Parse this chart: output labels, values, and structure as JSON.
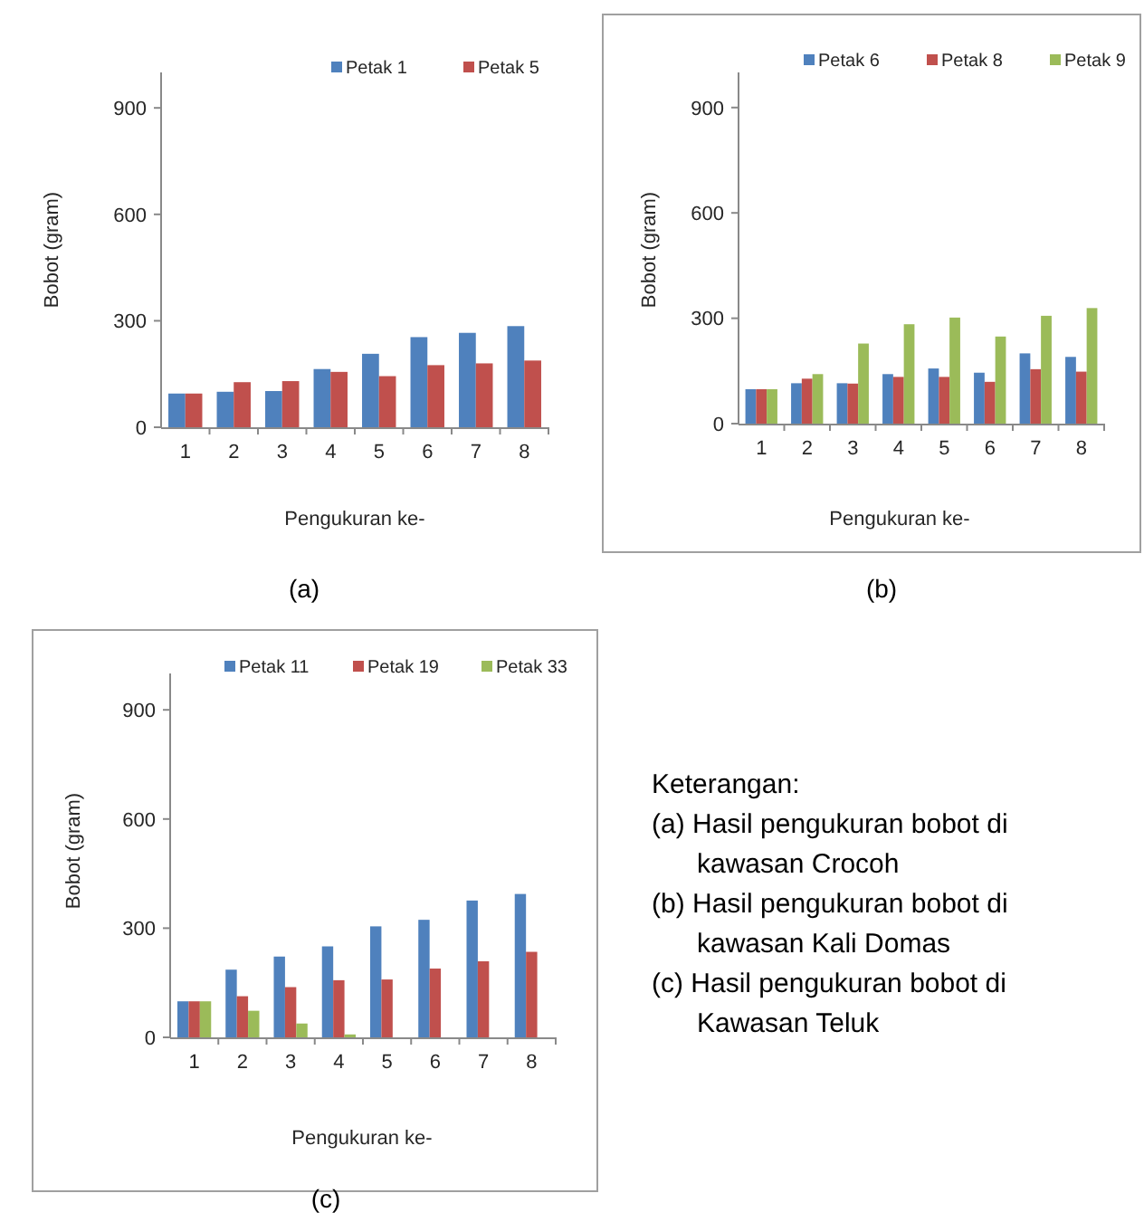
{
  "chart_data": [
    {
      "type": "bar",
      "title": "(a)",
      "xlabel": "Pengukuran ke-",
      "ylabel": "Bobot (gram)",
      "categories": [
        "1",
        "2",
        "3",
        "4",
        "5",
        "6",
        "7",
        "8"
      ],
      "ylim": [
        0,
        1000
      ],
      "yticks": [
        0,
        300,
        600,
        900
      ],
      "legend": "top right",
      "series": [
        {
          "name": "Petak 1",
          "color": "#4f81bd",
          "values": [
            95,
            100,
            102,
            164,
            207,
            254,
            266,
            285
          ]
        },
        {
          "name": "Petak 5",
          "color": "#c0504d",
          "values": [
            95,
            127,
            130,
            156,
            144,
            175,
            180,
            188
          ]
        }
      ]
    },
    {
      "type": "bar",
      "title": "(b)",
      "xlabel": "Pengukuran ke-",
      "ylabel": "Bobot (gram)",
      "categories": [
        "1",
        "2",
        "3",
        "4",
        "5",
        "6",
        "7",
        "8"
      ],
      "ylim": [
        0,
        1000
      ],
      "yticks": [
        0,
        300,
        600,
        900
      ],
      "legend": "top right",
      "series": [
        {
          "name": "Petak 6",
          "color": "#4f81bd",
          "values": [
            98,
            115,
            115,
            141,
            157,
            145,
            200,
            190
          ]
        },
        {
          "name": "Petak 8",
          "color": "#c0504d",
          "values": [
            98,
            128,
            114,
            133,
            133,
            119,
            155,
            148
          ]
        },
        {
          "name": "Petak 9",
          "color": "#9bbb59",
          "values": [
            98,
            141,
            228,
            283,
            302,
            248,
            307,
            329
          ]
        }
      ]
    },
    {
      "type": "bar",
      "title": "(c)",
      "xlabel": "Pengukuran ke-",
      "ylabel": "Bobot (gram)",
      "categories": [
        "1",
        "2",
        "3",
        "4",
        "5",
        "6",
        "7",
        "8"
      ],
      "ylim": [
        0,
        1000
      ],
      "yticks": [
        0,
        300,
        600,
        900
      ],
      "legend": "top right",
      "series": [
        {
          "name": "Petak 11",
          "color": "#4f81bd",
          "values": [
            99,
            186,
            222,
            250,
            305,
            323,
            376,
            394
          ]
        },
        {
          "name": "Petak 19",
          "color": "#c0504d",
          "values": [
            99,
            113,
            138,
            157,
            159,
            189,
            209,
            235
          ]
        },
        {
          "name": "Petak 33",
          "color": "#9bbb59",
          "values": [
            99,
            73,
            38,
            8,
            null,
            null,
            null,
            null
          ]
        }
      ]
    },
    {
      "type": "other",
      "annotations": [
        "Keterangan:",
        "(a) Hasil pengukuran bobot di kawasan Crocoh",
        "(b) Hasil pengukuran bobot di kawasan Kali Domas",
        "(c) Hasil pengukuran bobot di Kawasan Teluk"
      ]
    }
  ]
}
